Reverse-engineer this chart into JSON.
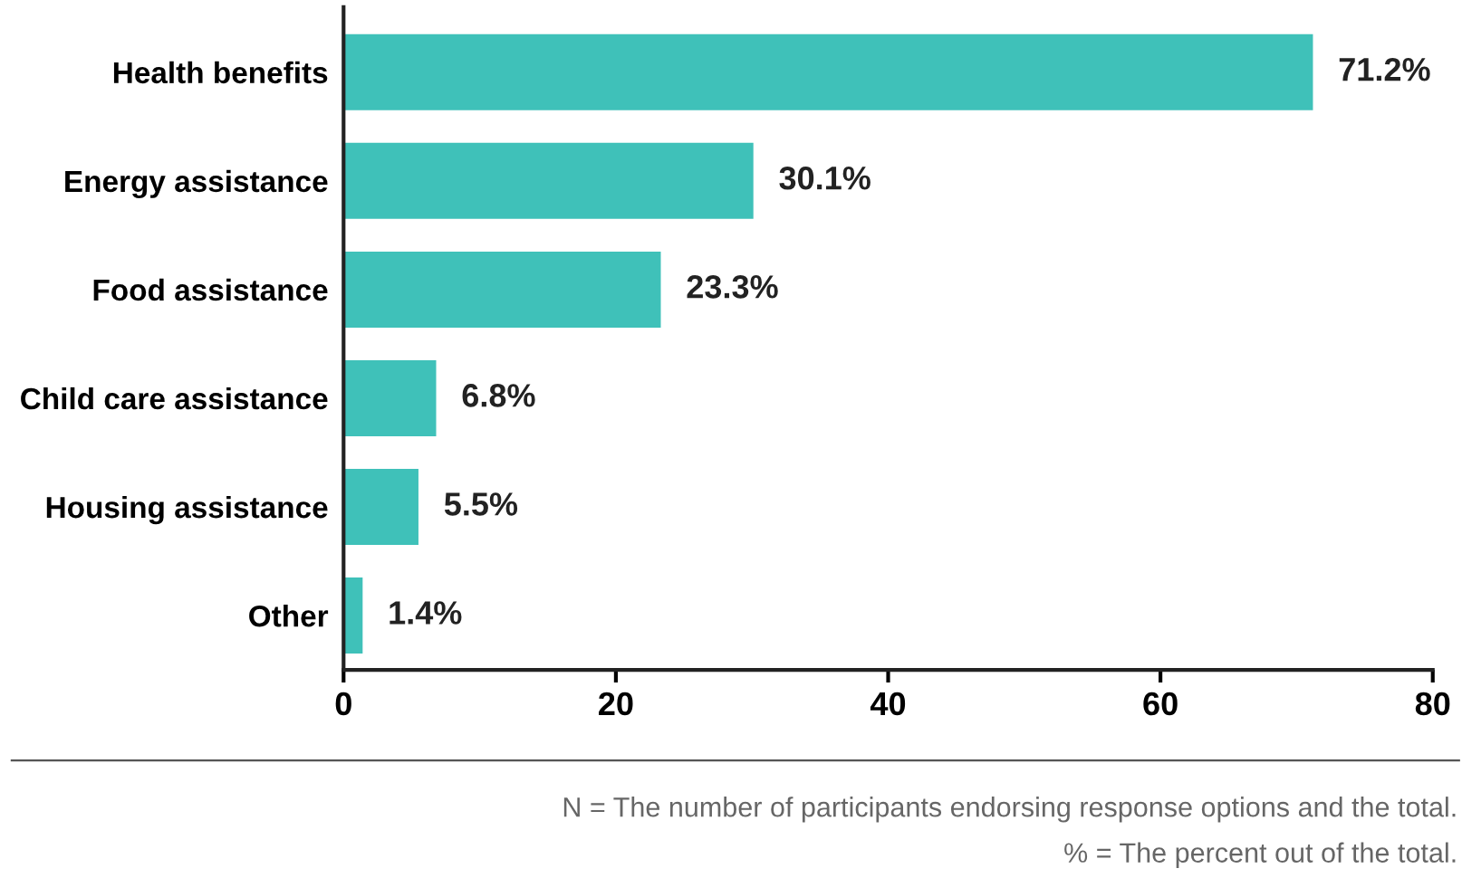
{
  "chart_data": {
    "type": "bar",
    "orientation": "horizontal",
    "categories": [
      "Health benefits",
      "Energy assistance",
      "Food assistance",
      "Child care assistance",
      "Housing assistance",
      "Other"
    ],
    "values": [
      71.2,
      30.1,
      23.3,
      6.8,
      5.5,
      1.4
    ],
    "value_labels": [
      "71.2%",
      "30.1%",
      "23.3%",
      "6.8%",
      "5.5%",
      "1.4%"
    ],
    "color": "#3fc1b9",
    "xlim": [
      0,
      80
    ],
    "xticks": [
      0,
      20,
      40,
      60,
      80
    ],
    "grid": false,
    "legend": false,
    "annotations": [
      "N = The number of participants endorsing response options and the total.",
      "% = The percent out of the total."
    ]
  }
}
